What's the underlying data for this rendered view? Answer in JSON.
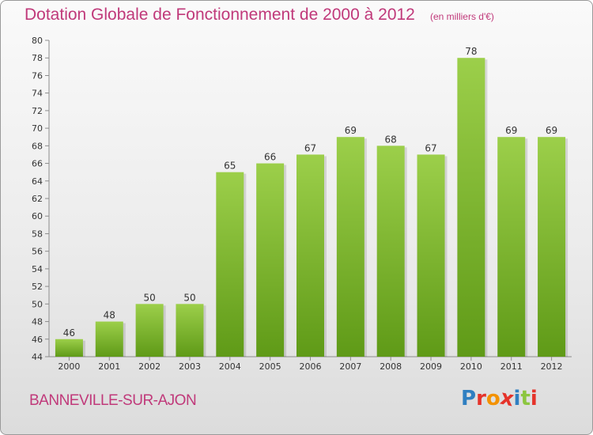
{
  "header": {
    "title": "Dotation Globale de Fonctionnement de 2000 à 2012",
    "subtitle": "(en milliers d'€)"
  },
  "footer": {
    "commune": "BANNEVILLE-SUR-AJON",
    "logo_text": "Proxiti"
  },
  "colors": {
    "title": "#c0397a",
    "bar_top": "#9ccf4a",
    "bar_bottom": "#5f9a17",
    "logo_letters": [
      "#2f7fc1",
      "#e5332a",
      "#f39200",
      "#e5332a",
      "#2f7fc1",
      "#8cc63f",
      "#e5332a"
    ]
  },
  "chart_data": {
    "type": "bar",
    "categories": [
      "2000",
      "2001",
      "2002",
      "2003",
      "2004",
      "2005",
      "2006",
      "2007",
      "2008",
      "2009",
      "2010",
      "2011",
      "2012"
    ],
    "values": [
      46,
      48,
      50,
      50,
      65,
      66,
      67,
      69,
      68,
      67,
      78,
      69,
      69
    ],
    "title": "Dotation Globale de Fonctionnement de 2000 à 2012",
    "subtitle": "(en milliers d'€)",
    "xlabel": "",
    "ylabel": "",
    "ylim": [
      44,
      80
    ],
    "yticks": [
      44,
      46,
      48,
      50,
      52,
      54,
      56,
      58,
      60,
      62,
      64,
      66,
      68,
      70,
      72,
      74,
      76,
      78,
      80
    ],
    "grid": false,
    "legend": "none"
  }
}
